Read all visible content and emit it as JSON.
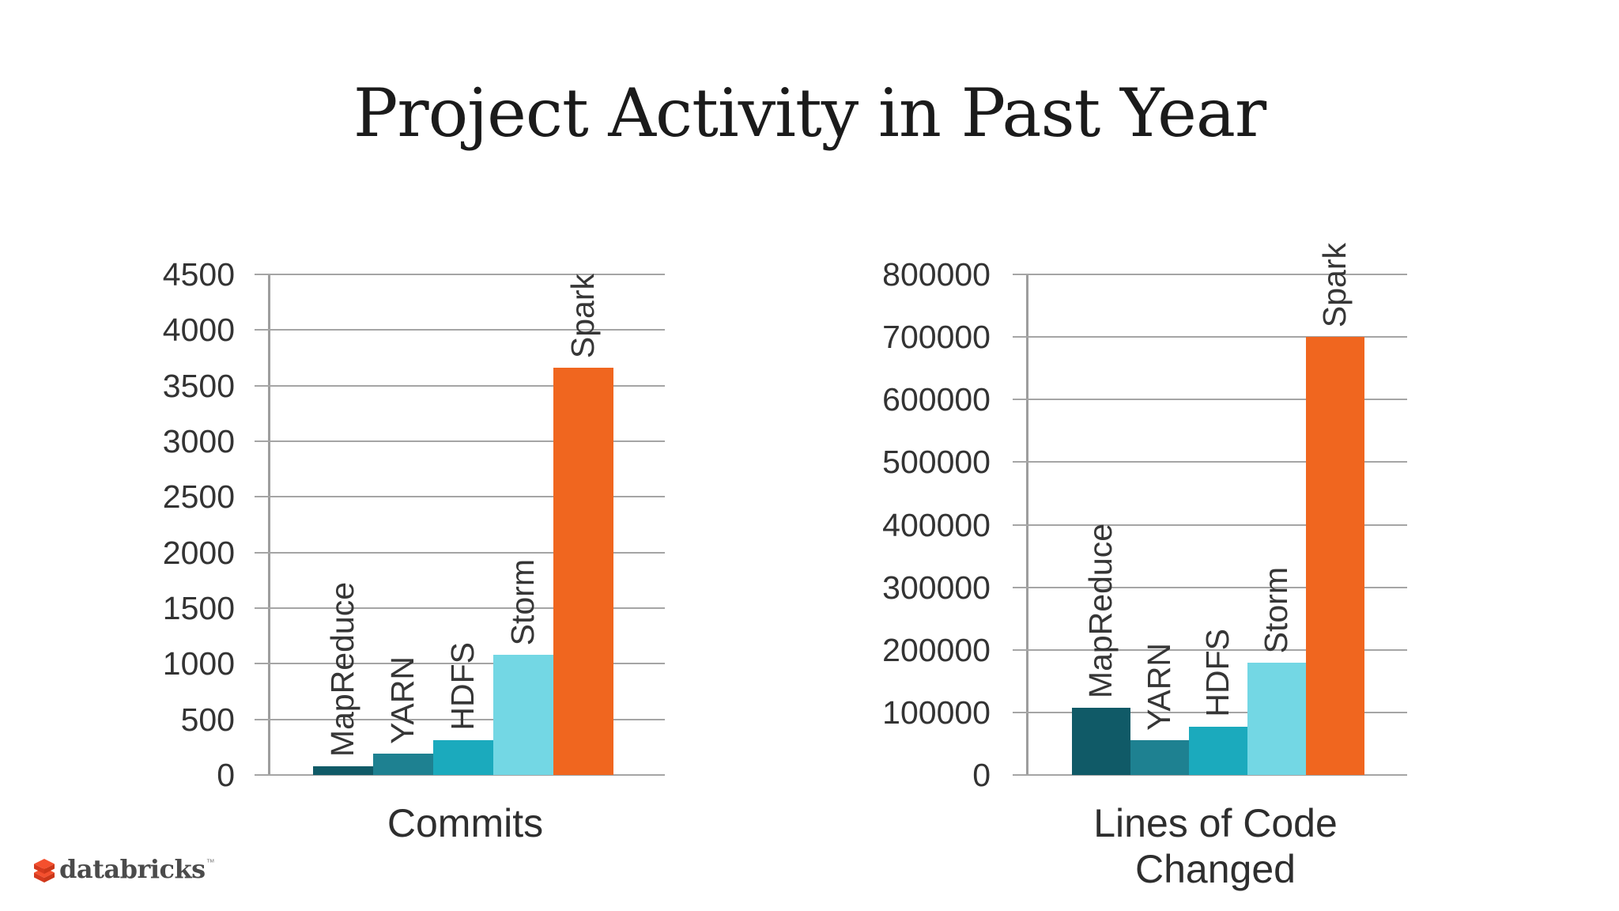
{
  "title": "Project Activity in Past Year",
  "logo": {
    "wordmark": "databricks",
    "trademark": "™"
  },
  "colors": {
    "background": "#ffffff",
    "gridline": "#a5a5a5",
    "axis_line": "#9d9d9d",
    "title_text": "#1b1b1b",
    "chart_text": "#333333",
    "logo_text": "#4b4b4b",
    "logo_brick_top": "#f4502e",
    "logo_brick_front": "#d63a1e"
  },
  "chart_data": [
    {
      "type": "bar",
      "title": "",
      "xlabel": "Commits",
      "ylabel": "",
      "categories": [
        "MapReduce",
        "YARN",
        "HDFS",
        "Storm",
        "Spark"
      ],
      "values": [
        75,
        195,
        310,
        1080,
        3660
      ],
      "ylim": [
        0,
        4500
      ],
      "ytick_step": 500,
      "yticks": [
        "4500",
        "4000",
        "3500",
        "3000",
        "2500",
        "2000",
        "1500",
        "1000",
        "500",
        "0"
      ],
      "bar_colors": [
        "#105a67",
        "#1e8191",
        "#1baabd",
        "#73d7e4",
        "#f0661f"
      ],
      "grid": "horizontal",
      "legend": "none",
      "bar_label_rotation": "vertical-bottom-to-top"
    },
    {
      "type": "bar",
      "title": "",
      "xlabel": "Lines of Code Changed",
      "ylabel": "",
      "categories": [
        "MapReduce",
        "YARN",
        "HDFS",
        "Storm",
        "Spark"
      ],
      "values": [
        107000,
        56000,
        77000,
        180000,
        700000
      ],
      "ylim": [
        0,
        800000
      ],
      "ytick_step": 100000,
      "yticks": [
        "800000",
        "700000",
        "600000",
        "500000",
        "400000",
        "300000",
        "200000",
        "100000",
        "0"
      ],
      "bar_colors": [
        "#105a67",
        "#1e8191",
        "#1baabd",
        "#73d7e4",
        "#f0661f"
      ],
      "grid": "horizontal",
      "legend": "none",
      "bar_label_rotation": "vertical-bottom-to-top"
    }
  ]
}
